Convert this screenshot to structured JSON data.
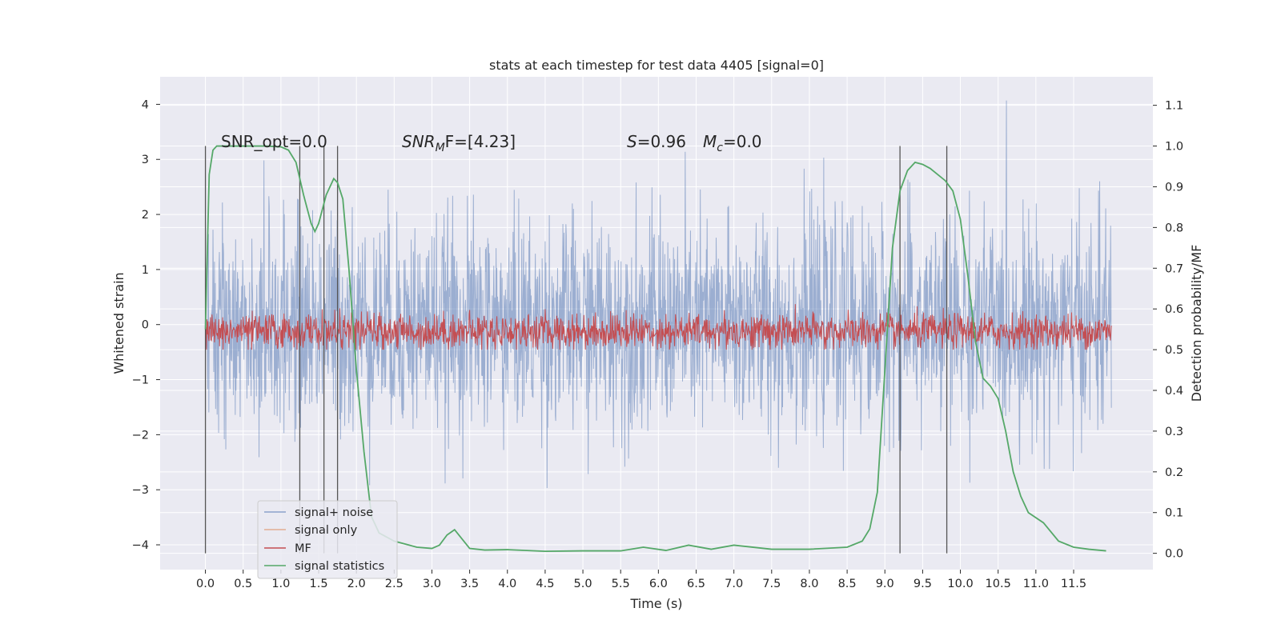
{
  "chart_data": {
    "type": "line",
    "title": "stats at each timestep for test data 4405 [signal=0]",
    "xlabel": "Time (s)",
    "ylabel": "Whitened strain",
    "y2label": "Detection probability/MF",
    "xlim": [
      -0.6,
      12.55
    ],
    "ylim": [
      -4.45,
      4.5
    ],
    "y2lim": [
      -0.04,
      1.17
    ],
    "x_ticks": [
      0.0,
      0.5,
      1.0,
      1.5,
      2.0,
      2.5,
      3.0,
      3.5,
      4.0,
      4.5,
      5.0,
      5.5,
      6.0,
      6.5,
      7.0,
      7.5,
      8.0,
      8.5,
      9.0,
      9.5,
      10.0,
      10.5,
      11.0,
      11.5
    ],
    "x_tick_labels": [
      "0.0",
      "0.5",
      "1.0",
      "1.5",
      "2.0",
      "2.5",
      "3.0",
      "3.5",
      "4.0",
      "4.5",
      "5.0",
      "5.5",
      "6.0",
      "6.5",
      "7.0",
      "7.5",
      "8.0",
      "8.5",
      "9.0",
      "9.5",
      "10.0",
      "10.5",
      "11.0",
      "11.5"
    ],
    "y_ticks": [
      -4,
      -3,
      -2,
      -1,
      0,
      1,
      2,
      3,
      4
    ],
    "y_tick_labels": [
      "−4",
      "−3",
      "−2",
      "−1",
      "0",
      "1",
      "2",
      "3",
      "4"
    ],
    "y2_ticks": [
      0.0,
      0.1,
      0.2,
      0.3,
      0.4,
      0.5,
      0.6,
      0.7,
      0.8,
      0.9,
      1.0,
      1.1
    ],
    "y2_tick_labels": [
      "0.0",
      "0.1",
      "0.2",
      "0.3",
      "0.4",
      "0.5",
      "0.6",
      "0.7",
      "0.8",
      "0.9",
      "1.0",
      "1.1"
    ],
    "grid": true,
    "legend_position": "lower-left",
    "annotations": {
      "snr_opt": "SNR_opt=0.0",
      "snr_mf_main": "SNR",
      "snr_mf_sub": "M",
      "snr_mf_rest": "F=[4.23]",
      "s_italic": "S",
      "s_value": "=0.96",
      "mc_italic": "M",
      "mc_sub": "c",
      "mc_value": "=0.0"
    },
    "vertical_lines": [
      0.0,
      1.25,
      1.57,
      1.75,
      9.2,
      9.82
    ],
    "vertical_lines_y2_range": [
      0.0,
      1.0
    ],
    "series": [
      {
        "name": "signal+ noise",
        "color": "#4c72b0",
        "opacity": 0.5,
        "x_range": [
          0.0,
          12.0
        ],
        "y_range_approx": [
          -3.9,
          4.1
        ],
        "description_values": "white noise, std approx 1.0"
      },
      {
        "name": "signal only",
        "color": "#dd8452",
        "opacity": 0.5,
        "x": [],
        "y": []
      },
      {
        "name": "MF",
        "color": "#c44e52",
        "axis": "y2",
        "x_range": [
          0.0,
          12.0
        ],
        "y2_range_approx": [
          0.5,
          0.63
        ]
      },
      {
        "name": "signal statistics",
        "color": "#55a868",
        "axis": "y2",
        "x": [
          0.0,
          0.05,
          0.1,
          0.15,
          0.25,
          0.4,
          0.6,
          0.8,
          1.0,
          1.1,
          1.2,
          1.3,
          1.4,
          1.45,
          1.5,
          1.6,
          1.7,
          1.75,
          1.82,
          1.9,
          2.0,
          2.1,
          2.2,
          2.3,
          2.5,
          2.8,
          3.0,
          3.1,
          3.2,
          3.3,
          3.4,
          3.5,
          3.7,
          4.0,
          4.5,
          5.0,
          5.5,
          5.8,
          6.1,
          6.4,
          6.7,
          7.0,
          7.5,
          8.0,
          8.5,
          8.7,
          8.8,
          8.9,
          9.0,
          9.1,
          9.2,
          9.3,
          9.4,
          9.5,
          9.6,
          9.7,
          9.8,
          9.9,
          10.0,
          10.1,
          10.2,
          10.3,
          10.4,
          10.5,
          10.6,
          10.7,
          10.8,
          10.9,
          11.1,
          11.3,
          11.5,
          11.7,
          11.93
        ],
        "y": [
          0.55,
          0.93,
          0.99,
          1.0,
          1.0,
          1.0,
          1.0,
          1.0,
          0.998,
          0.99,
          0.96,
          0.88,
          0.81,
          0.79,
          0.81,
          0.88,
          0.92,
          0.91,
          0.87,
          0.7,
          0.45,
          0.25,
          0.09,
          0.05,
          0.03,
          0.015,
          0.012,
          0.02,
          0.045,
          0.058,
          0.035,
          0.012,
          0.008,
          0.009,
          0.005,
          0.006,
          0.006,
          0.015,
          0.007,
          0.02,
          0.01,
          0.02,
          0.01,
          0.01,
          0.015,
          0.03,
          0.06,
          0.15,
          0.45,
          0.75,
          0.89,
          0.94,
          0.96,
          0.955,
          0.945,
          0.93,
          0.915,
          0.89,
          0.82,
          0.68,
          0.52,
          0.43,
          0.41,
          0.38,
          0.3,
          0.2,
          0.14,
          0.1,
          0.075,
          0.03,
          0.015,
          0.01,
          0.006
        ]
      }
    ]
  }
}
